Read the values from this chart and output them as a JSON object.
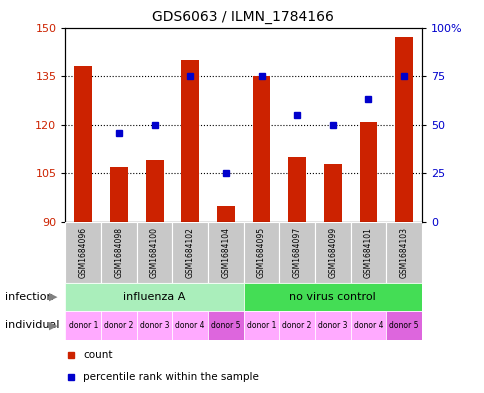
{
  "title": "GDS6063 / ILMN_1784166",
  "samples": [
    "GSM1684096",
    "GSM1684098",
    "GSM1684100",
    "GSM1684102",
    "GSM1684104",
    "GSM1684095",
    "GSM1684097",
    "GSM1684099",
    "GSM1684101",
    "GSM1684103"
  ],
  "counts": [
    138,
    107,
    109,
    140,
    95,
    135,
    110,
    108,
    121,
    147
  ],
  "percentiles": [
    null,
    46,
    50,
    75,
    25,
    75,
    55,
    50,
    63,
    75
  ],
  "ylim_left": [
    90,
    150
  ],
  "ylim_right": [
    0,
    100
  ],
  "yticks_left": [
    90,
    105,
    120,
    135,
    150
  ],
  "yticks_right": [
    0,
    25,
    50,
    75,
    100
  ],
  "ytick_labels_right": [
    "0",
    "25",
    "50",
    "75",
    "100%"
  ],
  "bar_color": "#cc2200",
  "dot_color": "#0000cc",
  "bar_width": 0.5,
  "infection_groups": [
    {
      "label": "influenza A",
      "start": 0,
      "end": 5,
      "color": "#aaeebb"
    },
    {
      "label": "no virus control",
      "start": 5,
      "end": 10,
      "color": "#44dd55"
    }
  ],
  "individual_labels": [
    "donor 1",
    "donor 2",
    "donor 3",
    "donor 4",
    "donor 5",
    "donor 1",
    "donor 2",
    "donor 3",
    "donor 4",
    "donor 5"
  ],
  "individual_colors": [
    "#ffaaff",
    "#ffaaff",
    "#ffaaff",
    "#ffaaff",
    "#dd66dd",
    "#ffaaff",
    "#ffaaff",
    "#ffaaff",
    "#ffaaff",
    "#dd66dd"
  ],
  "legend_count_label": "count",
  "legend_percentile_label": "percentile rank within the sample",
  "infection_label": "infection",
  "individual_label": "individual",
  "bg_color": "#ffffff",
  "plot_bg": "#ffffff",
  "sample_bg": "#c8c8c8",
  "hgrid_color": "#000000",
  "hgrid_values": [
    105,
    120,
    135
  ]
}
